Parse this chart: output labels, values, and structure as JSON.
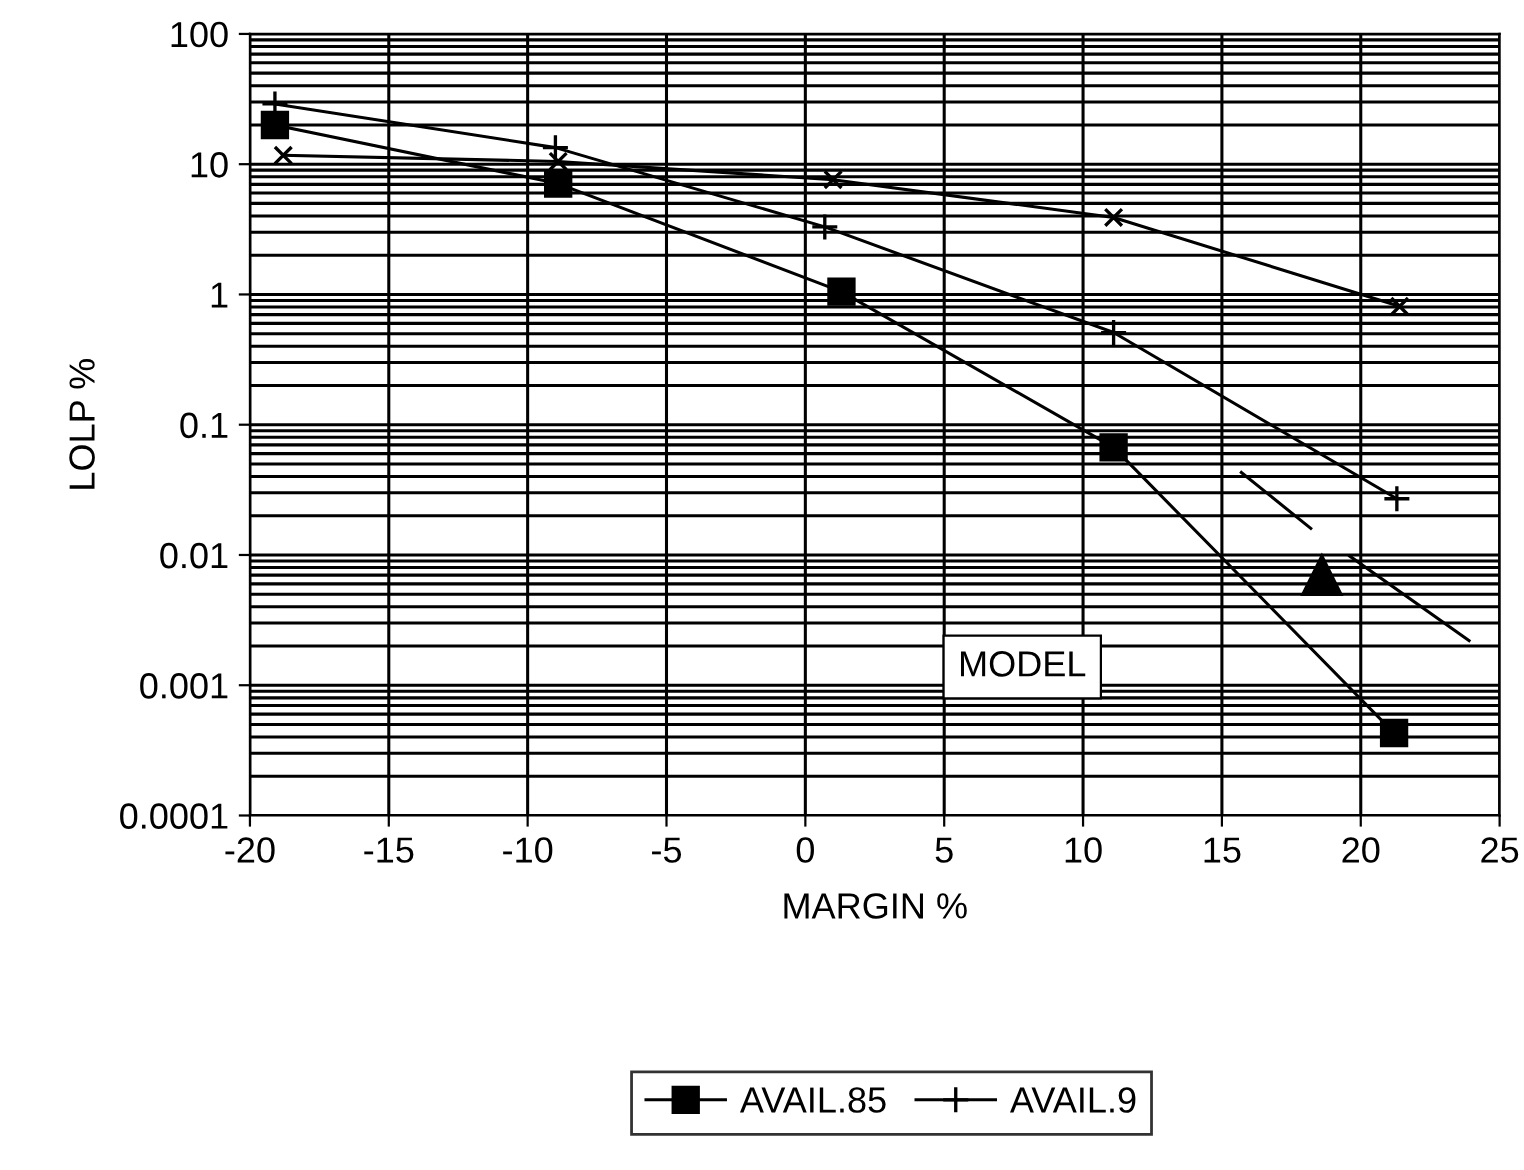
{
  "chart_data": {
    "type": "line",
    "xlabel": "MARGIN %",
    "ylabel": "LOLP %",
    "annotations": [
      "MODEL"
    ],
    "series": [
      {
        "name": "AVAIL.85",
        "color": "#000000",
        "marker": "square",
        "x": [
          -19.1,
          -8.9,
          1.3,
          11.1,
          21.2
        ],
        "values": [
          20,
          7.1,
          1.05,
          0.067,
          0.00043
        ]
      },
      {
        "name": "AVAIL.9",
        "color": "#000000",
        "marker": "plus",
        "x": [
          -19.1,
          -9.0,
          0.7,
          11.1,
          21.3
        ],
        "values": [
          29,
          13.4,
          3.3,
          0.51,
          0.027
        ]
      },
      {
        "color": "#000000",
        "marker": "cross",
        "x": [
          -18.8,
          -8.9,
          1.0,
          11.1,
          21.4
        ],
        "values": [
          11.7,
          10.5,
          7.6,
          3.9,
          0.81
        ]
      },
      {
        "color": "#000000",
        "marker": "none",
        "x": [
          15.7,
          18.2,
          null,
          19.6,
          23.9
        ],
        "values": [
          0.043,
          0.016,
          null,
          0.0098,
          0.0022
        ]
      },
      {
        "type": "scatter",
        "color": "#000000",
        "marker": "triangle",
        "x": [
          18.6
        ],
        "values": [
          0.007
        ]
      }
    ],
    "log": "y",
    "xlim": [
      -20,
      25
    ],
    "xticks": [
      -20,
      -15,
      -10,
      -5,
      0,
      5,
      10,
      15,
      20,
      25
    ],
    "ylim": [
      0.0001,
      100
    ],
    "yticks": [
      0.0001,
      0.001,
      0.01,
      0.1,
      1,
      10,
      100
    ],
    "grid": true,
    "legend": "bottom"
  }
}
